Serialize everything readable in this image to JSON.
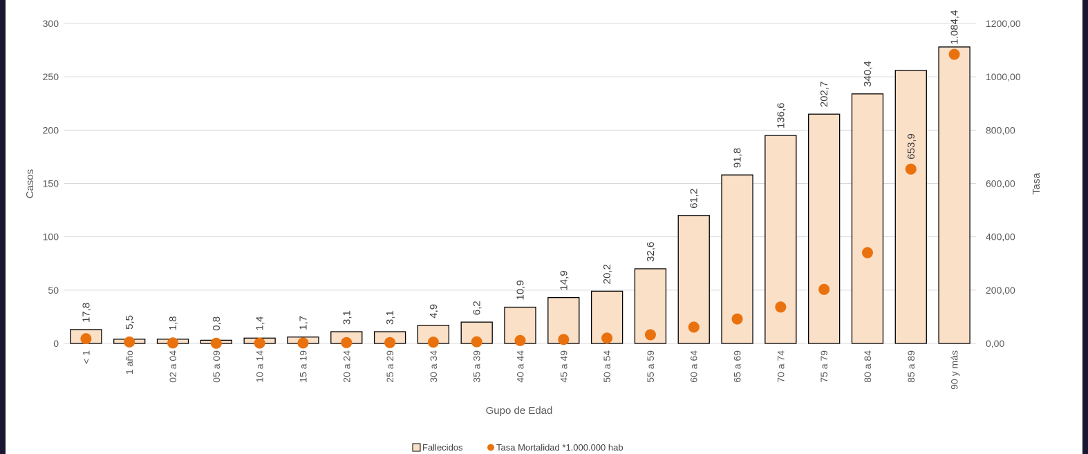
{
  "chart_data": {
    "type": "bar",
    "categories": [
      "< 1",
      "1 año",
      "02 a 04",
      "05 a 09",
      "10 a 14",
      "15 a 19",
      "20 a 24",
      "25 a 29",
      "30 a 34",
      "35 a 39",
      "40 a 44",
      "45 a 49",
      "50 a 54",
      "55 a 59",
      "60 a 64",
      "65 a 69",
      "70 a 74",
      "75 a 79",
      "80 a 84",
      "85 a 89",
      "90 y más"
    ],
    "series": [
      {
        "name": "Fallecidos",
        "kind": "bar",
        "axis": "left",
        "color": "#fbe0c8",
        "values": [
          13,
          4,
          4,
          3,
          5,
          6,
          11,
          11,
          17,
          20,
          34,
          43,
          49,
          70,
          120,
          158,
          195,
          215,
          234,
          256,
          278
        ]
      },
      {
        "name": "Tasa Mortalidad *1.000.000 hab",
        "kind": "scatter",
        "axis": "right",
        "color": "#e9720f",
        "values": [
          17.8,
          5.5,
          1.8,
          0.8,
          1.4,
          1.7,
          3.1,
          3.1,
          4.9,
          6.2,
          10.9,
          14.9,
          20.2,
          32.6,
          61.2,
          91.8,
          136.6,
          202.7,
          340.4,
          653.9,
          1084.4
        ],
        "labels": [
          "17,8",
          "5,5",
          "1,8",
          "0,8",
          "1,4",
          "1,7",
          "3,1",
          "3,1",
          "4,9",
          "6,2",
          "10,9",
          "14,9",
          "20,2",
          "32,6",
          "61,2",
          "91,8",
          "136,6",
          "202,7",
          "340,4",
          "653,9",
          "1.084,4"
        ]
      }
    ],
    "xlabel": "Gupo de Edad",
    "ylabel": "Casos",
    "y2label": "Tasa",
    "ylim": [
      0,
      300
    ],
    "y2lim": [
      0,
      1200
    ],
    "yticks": [
      "0",
      "50",
      "100",
      "150",
      "200",
      "250",
      "300"
    ],
    "y2ticks": [
      "0,00",
      "200,00",
      "400,00",
      "600,00",
      "800,00",
      "1000,00",
      "1200,00"
    ],
    "grid": true,
    "legend": "bottom-center"
  }
}
